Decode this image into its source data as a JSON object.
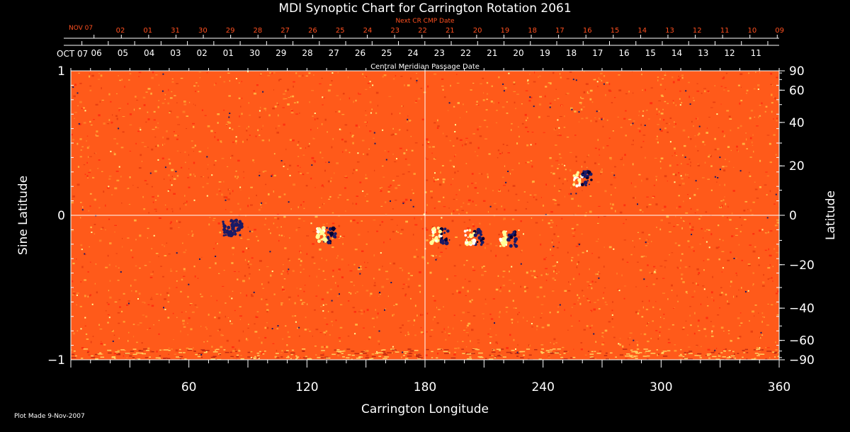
{
  "chart_data": {
    "type": "heatmap",
    "title": "MDI Synoptic Chart for Carrington Rotation 2061",
    "xlabel": "Carrington Longitude",
    "ylabel_left": "Sine Latitude",
    "ylabel_right": "Latitude",
    "xlim": [
      0,
      360
    ],
    "ylim": [
      -1,
      1
    ],
    "x_ticks": [
      60,
      120,
      180,
      240,
      300,
      360
    ],
    "y_ticks_left": [
      {
        "value": 1,
        "label": "1"
      },
      {
        "value": 0,
        "label": "0"
      },
      {
        "value": -1,
        "label": "−1"
      }
    ],
    "y_ticks_right": [
      {
        "value": 90,
        "label": "90"
      },
      {
        "value": 60,
        "label": "60"
      },
      {
        "value": 40,
        "label": "40"
      },
      {
        "value": 20,
        "label": "20"
      },
      {
        "value": 0,
        "label": "0"
      },
      {
        "value": -20,
        "label": "−20"
      },
      {
        "value": -40,
        "label": "−40"
      },
      {
        "value": -60,
        "label": "−60"
      },
      {
        "value": -90,
        "label": "−90"
      }
    ],
    "cmp_axis": {
      "label": "Central Meridian Passage Date",
      "start_label": "OCT 07",
      "dates": [
        "06",
        "05",
        "04",
        "03",
        "02",
        "01",
        "30",
        "29",
        "28",
        "27",
        "26",
        "25",
        "24",
        "23",
        "22",
        "21",
        "20",
        "19",
        "18",
        "17",
        "16",
        "15",
        "14",
        "13",
        "12",
        "11"
      ]
    },
    "next_cr_axis": {
      "label": "Next CR CMP Date",
      "start_label": "NOV 07",
      "dates": [
        "02",
        "01",
        "31",
        "30",
        "29",
        "28",
        "27",
        "26",
        "25",
        "24",
        "23",
        "22",
        "21",
        "20",
        "19",
        "18",
        "17",
        "16",
        "15",
        "14",
        "13",
        "12",
        "11",
        "10",
        "09"
      ]
    },
    "crosshair": {
      "longitude": 180,
      "sine_latitude": 0
    },
    "active_regions": [
      {
        "longitude": 130,
        "sine_latitude": -0.14,
        "polarity": "mixed"
      },
      {
        "longitude": 188,
        "sine_latitude": -0.14,
        "polarity": "mixed"
      },
      {
        "longitude": 205,
        "sine_latitude": -0.15,
        "polarity": "mixed"
      },
      {
        "longitude": 222,
        "sine_latitude": -0.16,
        "polarity": "mixed"
      },
      {
        "longitude": 260,
        "sine_latitude": 0.25,
        "polarity": "mixed"
      },
      {
        "longitude": 82,
        "sine_latitude": -0.09,
        "polarity": "negative"
      }
    ],
    "colors": {
      "background": "#ff5a1a",
      "positive": "#ffff99",
      "negative": "#1a1a66",
      "axes": "#ffffff",
      "next_cr": "#ff5020"
    }
  },
  "footer": {
    "plot_made": "Plot Made  9-Nov-2007"
  }
}
